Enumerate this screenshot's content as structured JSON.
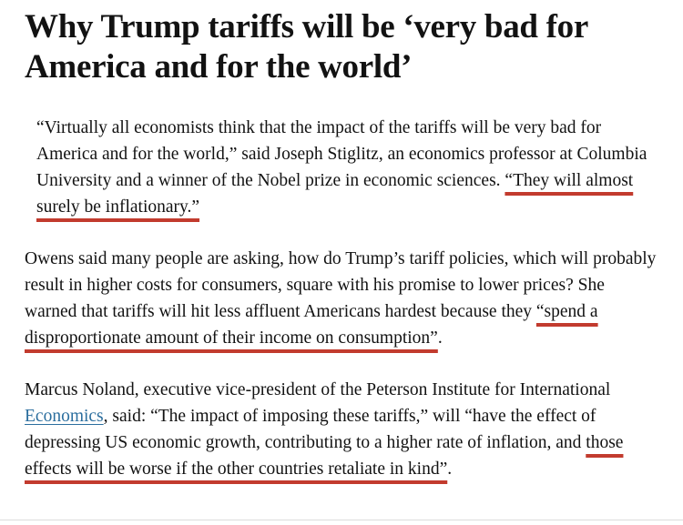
{
  "colors": {
    "headline_text": "#121212",
    "body_text": "#121212",
    "annotation_red": "#c23b2e",
    "link_blue": "#2b6e9e",
    "divider": "#dcdcdc",
    "background": "#ffffff"
  },
  "article": {
    "headline": "Why Trump tariffs will be ‘very bad for America and for the world’",
    "paragraphs": [
      {
        "segments": [
          {
            "style": "normal",
            "text": "“Virtually all economists think that the impact of the tariffs will be very bad for America and for the world,” said Joseph Stiglitz, an economics professor at Columbia University and a winner of the Nobel prize in economic sciences. "
          },
          {
            "style": "red-underline",
            "text": "“They will almost surely be inflationary.”"
          }
        ]
      },
      {
        "segments": [
          {
            "style": "normal",
            "text": "Owens said many people are asking, how do Trump’s tariff policies, which will probably result in higher costs for consumers, square with his promise to lower prices? She warned that tariffs will hit less affluent Americans hardest because they "
          },
          {
            "style": "red-underline",
            "text": "“spend a disproportionate amount of their income on consumption”"
          },
          {
            "style": "normal",
            "text": "."
          }
        ]
      },
      {
        "segments": [
          {
            "style": "normal",
            "text": "Marcus Noland, executive vice-president of the Peterson Institute for International "
          },
          {
            "style": "link",
            "text": "Economics"
          },
          {
            "style": "normal",
            "text": ", said: “The impact of imposing these tariffs,” will “have the effect of depressing US economic growth, contributing to a higher rate of inflation, and "
          },
          {
            "style": "red-underline",
            "text": "those effects will be worse if the other countries retaliate in kind”"
          },
          {
            "style": "normal",
            "text": "."
          }
        ]
      }
    ]
  }
}
